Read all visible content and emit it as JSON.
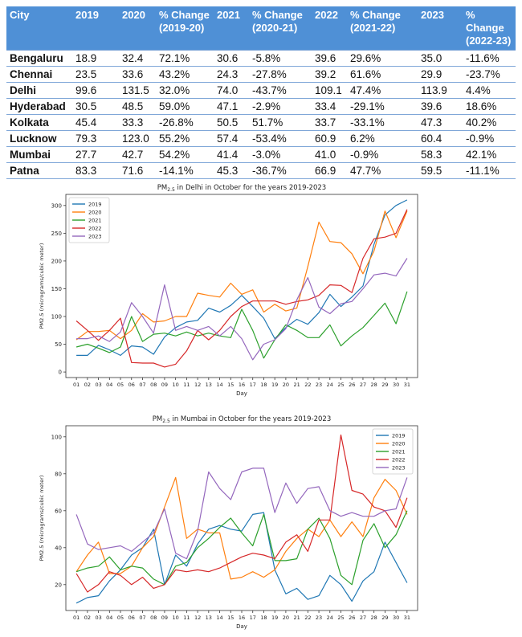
{
  "table": {
    "headers": [
      "City",
      "2019",
      "2020",
      "% Change\n(2019-20)",
      "2021",
      "% Change\n(2020-21)",
      "2022",
      "% Change\n(2021-22)",
      "2023",
      "% Change\n(2022-23)"
    ],
    "rows": [
      [
        "Bengaluru",
        "18.9",
        "32.4",
        "72.1%",
        "30.6",
        "-5.8%",
        "39.6",
        "29.6%",
        "35.0",
        "-11.6%"
      ],
      [
        "Chennai",
        "23.5",
        "33.6",
        "43.2%",
        "24.3",
        "-27.8%",
        "39.2",
        "61.6%",
        "29.9",
        "-23.7%"
      ],
      [
        "Delhi",
        "99.6",
        "131.5",
        "32.0%",
        "74.0",
        "-43.7%",
        "109.1",
        "47.4%",
        "113.9",
        "4.4%"
      ],
      [
        "Hyderabad",
        "30.5",
        "48.5",
        "59.0%",
        "47.1",
        "-2.9%",
        "33.4",
        "-29.1%",
        "39.6",
        "18.6%"
      ],
      [
        "Kolkata",
        "45.4",
        "33.3",
        "-26.8%",
        "50.5",
        "51.7%",
        "33.7",
        "-33.1%",
        "47.3",
        "40.2%"
      ],
      [
        "Lucknow",
        "79.3",
        "123.0",
        "55.2%",
        "57.4",
        "-53.4%",
        "60.9",
        "6.2%",
        "60.4",
        "-0.9%"
      ],
      [
        "Mumbai",
        "27.7",
        "42.7",
        "54.2%",
        "41.4",
        "-3.0%",
        "41.0",
        "-0.9%",
        "58.3",
        "42.1%"
      ],
      [
        "Patna",
        "83.3",
        "71.6",
        "-14.1%",
        "45.3",
        "-36.7%",
        "66.9",
        "47.7%",
        "59.5",
        "-11.1%"
      ]
    ]
  },
  "chart_data": [
    {
      "type": "line",
      "title_prefix": "PM",
      "title_sub": "2.5",
      "title_suffix": " in Delhi in October for the years 2019-2023",
      "xlabel": "Day",
      "ylabel": "PM2.5 (micrograms/cubic meter)",
      "x": [
        "01",
        "02",
        "03",
        "04",
        "05",
        "06",
        "07",
        "08",
        "09",
        "10",
        "11",
        "12",
        "13",
        "14",
        "15",
        "16",
        "17",
        "18",
        "19",
        "20",
        "21",
        "22",
        "23",
        "24",
        "25",
        "26",
        "27",
        "28",
        "29",
        "30",
        "31"
      ],
      "yticks": [
        0,
        50,
        100,
        150,
        200,
        250,
        300
      ],
      "ylim": [
        -10,
        320
      ],
      "legend": "top-left",
      "series": [
        {
          "name": "2019",
          "color": "#1f77b4",
          "values": [
            30,
            30,
            48,
            40,
            30,
            47,
            45,
            32,
            63,
            80,
            90,
            93,
            115,
            108,
            120,
            138,
            118,
            97,
            60,
            80,
            95,
            86,
            107,
            140,
            118,
            135,
            155,
            230,
            283,
            300,
            310
          ]
        },
        {
          "name": "2020",
          "color": "#ff7f0e",
          "values": [
            58,
            73,
            73,
            75,
            60,
            75,
            105,
            90,
            92,
            100,
            100,
            142,
            138,
            135,
            160,
            140,
            148,
            108,
            122,
            110,
            115,
            190,
            270,
            235,
            233,
            213,
            177,
            218,
            290,
            242,
            290
          ]
        },
        {
          "name": "2021",
          "color": "#2ca02c",
          "values": [
            45,
            50,
            43,
            35,
            45,
            100,
            55,
            68,
            70,
            65,
            72,
            65,
            70,
            65,
            62,
            113,
            75,
            25,
            58,
            85,
            75,
            62,
            62,
            85,
            47,
            65,
            80,
            102,
            124,
            87,
            145
          ]
        },
        {
          "name": "2022",
          "color": "#d62728",
          "values": [
            92,
            75,
            57,
            75,
            97,
            17,
            16,
            16,
            9,
            14,
            38,
            75,
            58,
            75,
            100,
            118,
            128,
            128,
            128,
            122,
            127,
            130,
            138,
            157,
            156,
            143,
            205,
            240,
            243,
            250,
            293
          ]
        },
        {
          "name": "2023",
          "color": "#9467bd",
          "values": [
            60,
            60,
            65,
            55,
            72,
            125,
            100,
            70,
            157,
            75,
            82,
            75,
            82,
            65,
            82,
            60,
            22,
            50,
            58,
            78,
            130,
            170,
            117,
            105,
            123,
            127,
            150,
            175,
            178,
            173,
            205
          ]
        }
      ]
    },
    {
      "type": "line",
      "title_prefix": "PM",
      "title_sub": "2.5",
      "title_suffix": " in Mumbai in October for the years 2019-2023",
      "xlabel": "Day",
      "ylabel": "PM2.5 (micrograms/cubic meter)",
      "x": [
        "01",
        "02",
        "03",
        "04",
        "05",
        "06",
        "07",
        "08",
        "09",
        "10",
        "11",
        "12",
        "13",
        "14",
        "15",
        "16",
        "17",
        "18",
        "19",
        "20",
        "21",
        "22",
        "23",
        "24",
        "25",
        "26",
        "27",
        "28",
        "29",
        "30",
        "31"
      ],
      "yticks": [
        20,
        40,
        60,
        80,
        100
      ],
      "ylim": [
        6,
        106
      ],
      "legend": "top-right",
      "series": [
        {
          "name": "2019",
          "color": "#1f77b4",
          "values": [
            10,
            13,
            14,
            22,
            28,
            36,
            40,
            50,
            20,
            36,
            30,
            42,
            50,
            52,
            50,
            49,
            58,
            59,
            28,
            15,
            18,
            12,
            14,
            25,
            20,
            11,
            22,
            27,
            43,
            32,
            21
          ]
        },
        {
          "name": "2020",
          "color": "#ff7f0e",
          "values": [
            27,
            36,
            43,
            26,
            26,
            30,
            40,
            46,
            62,
            78,
            45,
            50,
            48,
            48,
            23,
            24,
            27,
            24,
            28,
            38,
            45,
            50,
            46,
            55,
            46,
            54,
            46,
            67,
            77,
            71,
            58
          ]
        },
        {
          "name": "2021",
          "color": "#2ca02c",
          "values": [
            27,
            29,
            30,
            35,
            28,
            30,
            29,
            23,
            20,
            30,
            32,
            40,
            45,
            51,
            56,
            48,
            41,
            58,
            33,
            33,
            34,
            50,
            56,
            45,
            25,
            20,
            44,
            53,
            40,
            47,
            60
          ]
        },
        {
          "name": "2022",
          "color": "#d62728",
          "values": [
            26,
            16,
            20,
            27,
            25,
            20,
            24,
            18,
            20,
            28,
            27,
            28,
            27,
            29,
            32,
            35,
            37,
            36,
            34,
            43,
            47,
            38,
            55,
            55,
            101,
            71,
            69,
            62,
            60,
            51,
            67
          ]
        },
        {
          "name": "2023",
          "color": "#9467bd",
          "values": [
            58,
            42,
            39,
            40,
            41,
            38,
            43,
            48,
            61,
            37,
            34,
            49,
            81,
            72,
            66,
            81,
            83,
            83,
            59,
            75,
            64,
            72,
            73,
            60,
            57,
            59,
            57,
            57,
            60,
            61,
            78
          ]
        }
      ]
    }
  ]
}
